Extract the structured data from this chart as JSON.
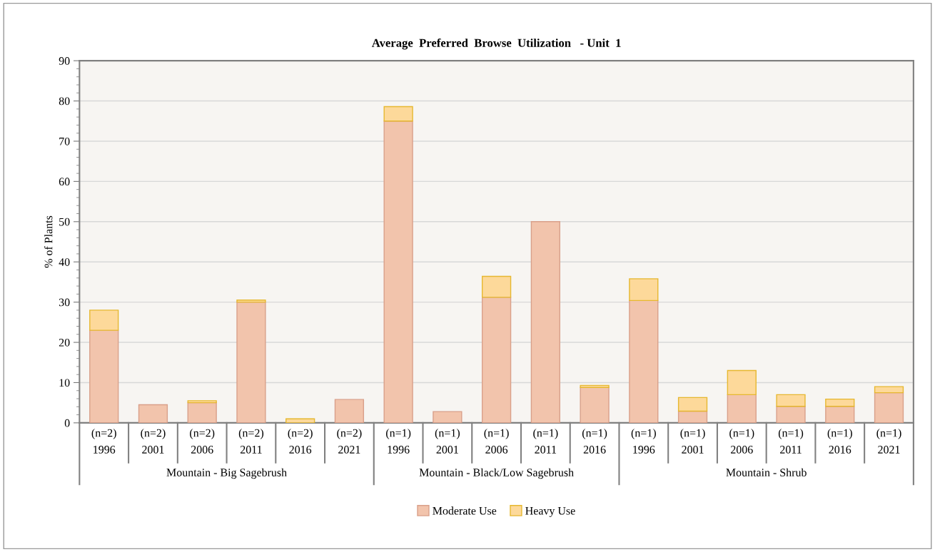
{
  "chart_data": {
    "type": "bar",
    "title": "Average  Preferred  Browse  Utilization   - Unit  1",
    "ylabel": "% of Plants",
    "categories": [
      "(n=2)\n1996",
      "(n=2)\n2001",
      "(n=2)\n2006",
      "(n=2)\n2011",
      "(n=2)\n2016",
      "(n=2)\n2021",
      "(n=1)\n1996",
      "(n=1)\n2001",
      "(n=1)\n2006",
      "(n=1)\n2011",
      "(n=1)\n2016",
      "(n=1)\n1996",
      "(n=1)\n2001",
      "(n=1)\n2006",
      "(n=1)\n2011",
      "(n=1)\n2016",
      "(n=1)\n2021"
    ],
    "annotations": [
      "Mountain - Big Sagebrush",
      "Mountain - Black/Low Sagebrush",
      "Mountain - Shrub"
    ],
    "stacked": true,
    "series": [
      {
        "name": "Moderate Use",
        "color": "#f2c4ac",
        "values": [
          23,
          4.5,
          5,
          30,
          0,
          5.8,
          75,
          2.8,
          31.2,
          50,
          8.8,
          30.4,
          2.9,
          7,
          4.1,
          4.1,
          7.5
        ]
      },
      {
        "name": "Heavy Use",
        "color": "#fdd99a",
        "values": [
          5,
          0,
          0.5,
          0.5,
          1,
          0,
          3.6,
          0,
          5.2,
          0,
          0.5,
          5.4,
          3.4,
          6,
          2.9,
          1.8,
          1.5
        ]
      }
    ],
    "ylim": [
      0,
      90
    ],
    "yticks": [
      0,
      10,
      20,
      30,
      40,
      50,
      60,
      70,
      80,
      90
    ],
    "grid": "y",
    "legend": "bottom"
  }
}
